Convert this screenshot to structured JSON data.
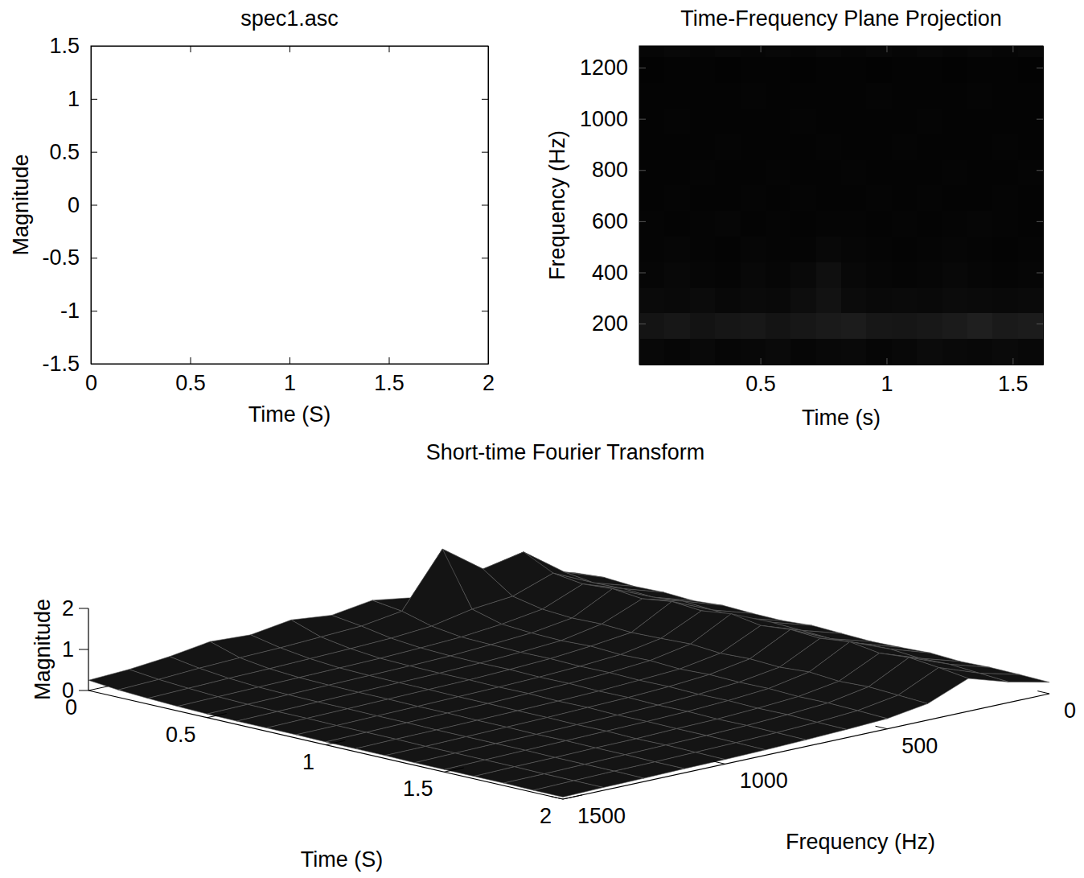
{
  "chart_data": [
    {
      "type": "line",
      "title": "spec1.asc",
      "xlabel": "Time (S)",
      "ylabel": "Magnitude",
      "xlim": [
        0,
        2
      ],
      "ylim": [
        -1.5,
        1.5
      ],
      "xticks": [
        0,
        0.5,
        1,
        1.5,
        2
      ],
      "yticks": [
        -1.5,
        -1,
        -0.5,
        0,
        0.5,
        1,
        1.5
      ]
    },
    {
      "type": "heatmap",
      "title": "Time-Frequency Plane Projection",
      "xlabel": "Time (s)",
      "ylabel": "Frequency (Hz)",
      "xlim": [
        0.02,
        1.62
      ],
      "ylim": [
        40,
        1285
      ],
      "xticks": [
        0.5,
        1,
        1.5
      ],
      "yticks": [
        200,
        400,
        600,
        800,
        1000,
        1200
      ],
      "x": [
        0.07,
        0.17,
        0.27,
        0.37,
        0.47,
        0.57,
        0.67,
        0.77,
        0.87,
        0.97,
        1.07,
        1.17,
        1.27,
        1.37,
        1.47,
        1.57
      ],
      "y": [
        90,
        190,
        290,
        390,
        490,
        590,
        690,
        790,
        890,
        990,
        1090,
        1190,
        1290
      ],
      "zlim": [
        0,
        2
      ],
      "z": [
        [
          0.06,
          0.05,
          0.07,
          0.05,
          0.06,
          0.08,
          0.05,
          0.06,
          0.07,
          0.05,
          0.06,
          0.09,
          0.07,
          0.06,
          0.08,
          0.06
        ],
        [
          0.16,
          0.18,
          0.15,
          0.17,
          0.19,
          0.16,
          0.18,
          0.2,
          0.22,
          0.18,
          0.17,
          0.19,
          0.21,
          0.24,
          0.2,
          0.22
        ],
        [
          0.08,
          0.07,
          0.09,
          0.06,
          0.08,
          0.07,
          0.1,
          0.14,
          0.09,
          0.07,
          0.08,
          0.07,
          0.09,
          0.08,
          0.07,
          0.08
        ],
        [
          0.05,
          0.06,
          0.05,
          0.04,
          0.06,
          0.05,
          0.07,
          0.12,
          0.06,
          0.05,
          0.04,
          0.05,
          0.06,
          0.05,
          0.04,
          0.05
        ],
        [
          0.04,
          0.05,
          0.04,
          0.03,
          0.05,
          0.04,
          0.04,
          0.06,
          0.05,
          0.04,
          0.03,
          0.04,
          0.05,
          0.04,
          0.03,
          0.04
        ],
        [
          0.04,
          0.03,
          0.04,
          0.05,
          0.03,
          0.04,
          0.03,
          0.04,
          0.04,
          0.03,
          0.04,
          0.03,
          0.04,
          0.05,
          0.04,
          0.03
        ],
        [
          0.03,
          0.04,
          0.03,
          0.03,
          0.04,
          0.03,
          0.04,
          0.03,
          0.03,
          0.04,
          0.03,
          0.04,
          0.03,
          0.03,
          0.04,
          0.03
        ],
        [
          0.03,
          0.03,
          0.04,
          0.03,
          0.03,
          0.04,
          0.03,
          0.03,
          0.04,
          0.03,
          0.03,
          0.03,
          0.04,
          0.03,
          0.03,
          0.04
        ],
        [
          0.03,
          0.03,
          0.03,
          0.04,
          0.03,
          0.03,
          0.03,
          0.04,
          0.03,
          0.03,
          0.04,
          0.03,
          0.03,
          0.03,
          0.04,
          0.03
        ],
        [
          0.03,
          0.04,
          0.03,
          0.03,
          0.03,
          0.03,
          0.04,
          0.03,
          0.03,
          0.03,
          0.03,
          0.04,
          0.03,
          0.03,
          0.03,
          0.03
        ],
        [
          0.03,
          0.03,
          0.03,
          0.03,
          0.04,
          0.03,
          0.03,
          0.03,
          0.03,
          0.04,
          0.03,
          0.03,
          0.03,
          0.04,
          0.03,
          0.03
        ],
        [
          0.02,
          0.03,
          0.03,
          0.02,
          0.03,
          0.03,
          0.02,
          0.03,
          0.03,
          0.02,
          0.03,
          0.03,
          0.02,
          0.03,
          0.03,
          0.02
        ],
        [
          0.05,
          0.06,
          0.05,
          0.06,
          0.05,
          0.06,
          0.05,
          0.06,
          0.05,
          0.06,
          0.05,
          0.06,
          0.05,
          0.06,
          0.05,
          0.06
        ]
      ]
    },
    {
      "type": "surface",
      "title": "Short-time Fourier Transform",
      "xlabel": "Time (S)",
      "ylabel": "Frequency (Hz)",
      "zlabel": "Magnitude",
      "xlim": [
        0,
        2
      ],
      "ylim": [
        0,
        1500
      ],
      "zlim": [
        0,
        2
      ],
      "xticks": [
        0,
        0.5,
        1,
        1.5,
        2
      ],
      "yticks": [
        0,
        500,
        1000,
        1500
      ],
      "zticks": [
        0,
        1,
        2
      ],
      "x": [
        0,
        0.125,
        0.25,
        0.375,
        0.5,
        0.625,
        0.75,
        0.875,
        1,
        1.125,
        1.25,
        1.375,
        1.5,
        1.625,
        1.75,
        1.875,
        2
      ],
      "y": [
        0,
        125,
        250,
        375,
        500,
        625,
        750,
        875,
        1000,
        1125,
        1250,
        1375,
        1500
      ],
      "z": [
        [
          0.3,
          0.35,
          0.3,
          0.32,
          0.28,
          0.33,
          0.3,
          0.29,
          0.34,
          0.31,
          0.28,
          0.3,
          0.33,
          0.29,
          0.31,
          0.3,
          0.28
        ],
        [
          0.55,
          0.7,
          0.6,
          0.62,
          0.58,
          0.65,
          0.6,
          0.57,
          0.63,
          0.6,
          0.56,
          0.61,
          0.64,
          0.58,
          0.6,
          0.55,
          0.5
        ],
        [
          0.9,
          1.4,
          1.05,
          0.95,
          1.0,
          0.92,
          1.02,
          0.96,
          1.05,
          0.93,
          1.0,
          0.95,
          1.03,
          0.92,
          0.98,
          0.9,
          0.8
        ],
        [
          0.6,
          1.2,
          0.7,
          0.55,
          0.5,
          0.52,
          0.48,
          0.5,
          0.53,
          0.47,
          0.5,
          0.46,
          0.51,
          0.45,
          0.48,
          0.44,
          0.4
        ],
        [
          0.55,
          1.9,
          0.6,
          0.4,
          0.35,
          0.33,
          0.36,
          0.32,
          0.34,
          0.3,
          0.33,
          0.31,
          0.32,
          0.29,
          0.3,
          0.28,
          0.25
        ],
        [
          0.7,
          0.6,
          0.4,
          0.3,
          0.28,
          0.26,
          0.27,
          0.25,
          0.26,
          0.24,
          0.25,
          0.23,
          0.24,
          0.22,
          0.23,
          0.21,
          0.2
        ],
        [
          0.55,
          0.45,
          0.32,
          0.25,
          0.22,
          0.21,
          0.22,
          0.2,
          0.21,
          0.19,
          0.2,
          0.18,
          0.19,
          0.17,
          0.18,
          0.17,
          0.16
        ],
        [
          0.65,
          0.4,
          0.28,
          0.21,
          0.19,
          0.18,
          0.18,
          0.17,
          0.18,
          0.16,
          0.17,
          0.15,
          0.16,
          0.15,
          0.15,
          0.14,
          0.13
        ],
        [
          0.5,
          0.35,
          0.25,
          0.19,
          0.17,
          0.16,
          0.16,
          0.15,
          0.15,
          0.14,
          0.14,
          0.13,
          0.14,
          0.12,
          0.13,
          0.12,
          0.11
        ],
        [
          0.55,
          0.32,
          0.22,
          0.17,
          0.15,
          0.14,
          0.14,
          0.13,
          0.13,
          0.12,
          0.12,
          0.11,
          0.12,
          0.11,
          0.11,
          0.1,
          0.1
        ],
        [
          0.4,
          0.28,
          0.2,
          0.15,
          0.13,
          0.12,
          0.12,
          0.11,
          0.11,
          0.1,
          0.1,
          0.1,
          0.1,
          0.09,
          0.09,
          0.09,
          0.08
        ],
        [
          0.3,
          0.22,
          0.17,
          0.13,
          0.11,
          0.1,
          0.1,
          0.09,
          0.09,
          0.09,
          0.08,
          0.08,
          0.08,
          0.08,
          0.07,
          0.07,
          0.07
        ],
        [
          0.25,
          0.18,
          0.14,
          0.11,
          0.09,
          0.08,
          0.08,
          0.08,
          0.07,
          0.07,
          0.07,
          0.06,
          0.06,
          0.06,
          0.06,
          0.05,
          0.05
        ]
      ]
    }
  ]
}
